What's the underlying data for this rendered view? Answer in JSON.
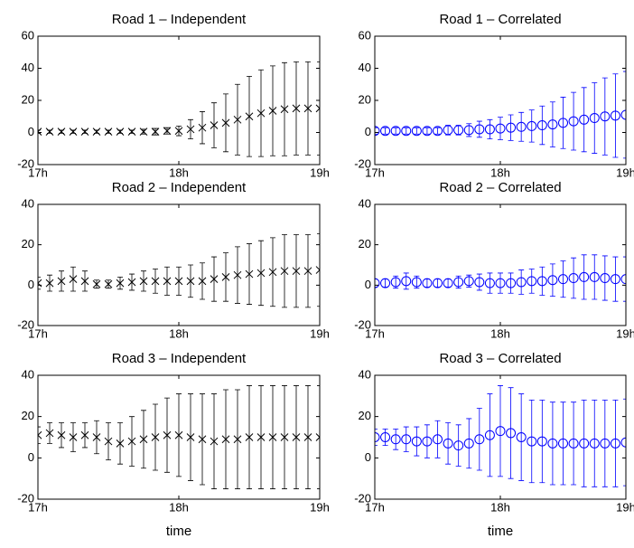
{
  "chart_data": [
    {
      "type": "errorbar",
      "title": "Road 1 – Independent",
      "color": "#000000",
      "marker": "x",
      "x": [
        0,
        5,
        10,
        15,
        20,
        25,
        30,
        35,
        40,
        45,
        50,
        55,
        60,
        65,
        70,
        75,
        80,
        85,
        90,
        95,
        100,
        105,
        110,
        115,
        120
      ],
      "values": [
        0.5,
        0.5,
        0.5,
        0.5,
        0.5,
        0.5,
        0.5,
        0.5,
        0.5,
        0.5,
        0.5,
        1,
        1,
        2,
        3,
        4.5,
        6,
        8,
        10,
        12,
        13.5,
        14.5,
        15,
        15,
        15
      ],
      "errors": [
        1,
        1,
        1,
        1,
        1,
        1,
        1,
        1,
        1,
        1.5,
        2,
        2,
        3,
        6,
        10,
        14,
        18,
        22,
        25,
        27,
        28,
        29,
        29,
        29,
        29
      ],
      "xlim": [
        0,
        120
      ],
      "xticks": [
        {
          "value": 0,
          "label": "17h"
        },
        {
          "value": 60,
          "label": "18h"
        },
        {
          "value": 120,
          "label": "19h"
        }
      ],
      "ylim": [
        -20,
        60
      ],
      "yticks": [
        -20,
        0,
        20,
        40,
        60
      ]
    },
    {
      "type": "errorbar",
      "title": "Road 1 – Correlated",
      "color": "#0000ff",
      "marker": "o",
      "x": [
        0,
        5,
        10,
        15,
        20,
        25,
        30,
        35,
        40,
        45,
        50,
        55,
        60,
        65,
        70,
        75,
        80,
        85,
        90,
        95,
        100,
        105,
        110,
        115,
        120
      ],
      "values": [
        1,
        1,
        1,
        1,
        1,
        1,
        1,
        1.5,
        1.5,
        1.5,
        2,
        2,
        2.5,
        3,
        3.5,
        4,
        4.5,
        5,
        6,
        7,
        8,
        9,
        10,
        10.5,
        11
      ],
      "errors": [
        2,
        2,
        2,
        2,
        2,
        2,
        2,
        3,
        3,
        4,
        5,
        6,
        7,
        8,
        9,
        10,
        12,
        14,
        16,
        18,
        20,
        22,
        24,
        26,
        27
      ],
      "xlim": [
        0,
        120
      ],
      "xticks": [
        {
          "value": 0,
          "label": "17h"
        },
        {
          "value": 60,
          "label": "18h"
        },
        {
          "value": 120,
          "label": "19h"
        }
      ],
      "ylim": [
        -20,
        60
      ],
      "yticks": [
        -20,
        0,
        20,
        40,
        60
      ]
    },
    {
      "type": "errorbar",
      "title": "Road 2 – Independent",
      "color": "#000000",
      "marker": "x",
      "x": [
        0,
        5,
        10,
        15,
        20,
        25,
        30,
        35,
        40,
        45,
        50,
        55,
        60,
        65,
        70,
        75,
        80,
        85,
        90,
        95,
        100,
        105,
        110,
        115,
        120
      ],
      "values": [
        1,
        1,
        2,
        3,
        2,
        0.5,
        0.5,
        1,
        1.5,
        2,
        2,
        2,
        2,
        2,
        2,
        3,
        4,
        5,
        5.5,
        6,
        6.5,
        7,
        7,
        7,
        7.5
      ],
      "errors": [
        3,
        4,
        5,
        6,
        5,
        2,
        2,
        3,
        4,
        5,
        6,
        7,
        7,
        8,
        9,
        11,
        12,
        14,
        15,
        16,
        17,
        18,
        18,
        18,
        18
      ],
      "xlim": [
        0,
        120
      ],
      "xticks": [
        {
          "value": 0,
          "label": "17h"
        },
        {
          "value": 60,
          "label": "18h"
        },
        {
          "value": 120,
          "label": "19h"
        }
      ],
      "ylim": [
        -20,
        40
      ],
      "yticks": [
        -20,
        0,
        20,
        40
      ]
    },
    {
      "type": "errorbar",
      "title": "Road 2 – Correlated",
      "color": "#0000ff",
      "marker": "o",
      "x": [
        0,
        5,
        10,
        15,
        20,
        25,
        30,
        35,
        40,
        45,
        50,
        55,
        60,
        65,
        70,
        75,
        80,
        85,
        90,
        95,
        100,
        105,
        110,
        115,
        120
      ],
      "values": [
        1,
        1,
        1.5,
        2,
        1.5,
        1,
        1,
        1,
        1.5,
        2,
        1.5,
        1,
        1,
        1,
        1.5,
        2,
        2,
        2.5,
        3,
        3.5,
        4,
        4,
        3.5,
        3,
        3
      ],
      "errors": [
        2,
        2,
        3,
        4,
        3,
        2,
        2,
        2,
        3,
        3,
        4,
        5,
        5,
        5,
        6,
        6,
        7,
        8,
        9,
        10,
        11,
        11,
        11,
        11,
        11
      ],
      "xlim": [
        0,
        120
      ],
      "xticks": [
        {
          "value": 0,
          "label": "17h"
        },
        {
          "value": 60,
          "label": "18h"
        },
        {
          "value": 120,
          "label": "19h"
        }
      ],
      "ylim": [
        -20,
        40
      ],
      "yticks": [
        -20,
        0,
        20,
        40
      ]
    },
    {
      "type": "errorbar",
      "title": "Road 3 – Independent",
      "xlabel": "time",
      "color": "#000000",
      "marker": "x",
      "x": [
        0,
        5,
        10,
        15,
        20,
        25,
        30,
        35,
        40,
        45,
        50,
        55,
        60,
        65,
        70,
        75,
        80,
        85,
        90,
        95,
        100,
        105,
        110,
        115,
        120
      ],
      "values": [
        11,
        12,
        11,
        10,
        11,
        10,
        8,
        7,
        8,
        9,
        10,
        11,
        11,
        10,
        9,
        8,
        9,
        9,
        10,
        10,
        10,
        10,
        10,
        10,
        10
      ],
      "errors": [
        4,
        5,
        6,
        7,
        6,
        8,
        9,
        10,
        12,
        14,
        16,
        18,
        20,
        21,
        22,
        23,
        24,
        24,
        25,
        25,
        25,
        25,
        25,
        25,
        25
      ],
      "xlim": [
        0,
        120
      ],
      "xticks": [
        {
          "value": 0,
          "label": "17h"
        },
        {
          "value": 60,
          "label": "18h"
        },
        {
          "value": 120,
          "label": "19h"
        }
      ],
      "ylim": [
        -20,
        40
      ],
      "yticks": [
        -20,
        0,
        20,
        40
      ]
    },
    {
      "type": "errorbar",
      "title": "Road 3 – Correlated",
      "xlabel": "time",
      "color": "#0000ff",
      "marker": "o",
      "x": [
        0,
        5,
        10,
        15,
        20,
        25,
        30,
        35,
        40,
        45,
        50,
        55,
        60,
        65,
        70,
        75,
        80,
        85,
        90,
        95,
        100,
        105,
        110,
        115,
        120
      ],
      "values": [
        10,
        10,
        9,
        9,
        8,
        8,
        9,
        7,
        6,
        7,
        9,
        11,
        13,
        12,
        10,
        8,
        8,
        7,
        7,
        7,
        7,
        7,
        7,
        7,
        7.5
      ],
      "errors": [
        4,
        4,
        5,
        6,
        7,
        8,
        9,
        10,
        10,
        12,
        15,
        20,
        22,
        22,
        21,
        20,
        20,
        20,
        20,
        20,
        21,
        21,
        21,
        21,
        21
      ],
      "xlim": [
        0,
        120
      ],
      "xticks": [
        {
          "value": 0,
          "label": "17h"
        },
        {
          "value": 60,
          "label": "18h"
        },
        {
          "value": 120,
          "label": "19h"
        }
      ],
      "ylim": [
        -20,
        40
      ],
      "yticks": [
        -20,
        0,
        20,
        40
      ]
    }
  ]
}
